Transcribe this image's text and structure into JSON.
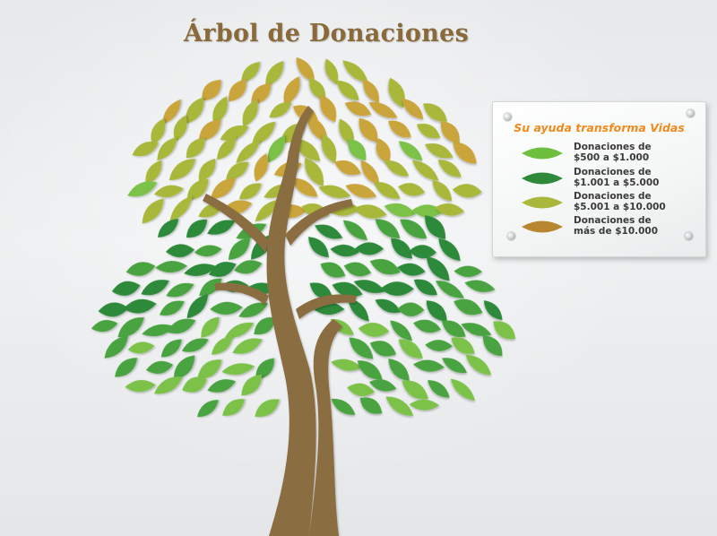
{
  "title": "Árbol de Donaciones",
  "plaque": {
    "heading": "Su ayuda transforma Vidas",
    "legend": [
      {
        "text": "Donaciones de\n$500 a $1.000",
        "leaf_color": "#6fbf3f",
        "leaf_icon": "light-green-leaf-icon"
      },
      {
        "text": "Donaciones de\n$1.001 a $5.000",
        "leaf_color": "#2e8a3a",
        "leaf_icon": "dark-green-leaf-icon"
      },
      {
        "text": "Donaciones de\n$5.001 a $10.000",
        "leaf_color": "#a9b83a",
        "leaf_icon": "olive-leaf-icon"
      },
      {
        "text": "Donaciones de\nmás de $10.000",
        "leaf_color": "#b8862e",
        "leaf_icon": "golden-leaf-icon"
      }
    ]
  },
  "palette": {
    "gold": "#c9a53a",
    "olive": "#a9b83a",
    "dark_green": "#2e8a3a",
    "mid_green": "#4aa33f",
    "light_green": "#7cc24a",
    "trunk": "#8b6d42"
  }
}
